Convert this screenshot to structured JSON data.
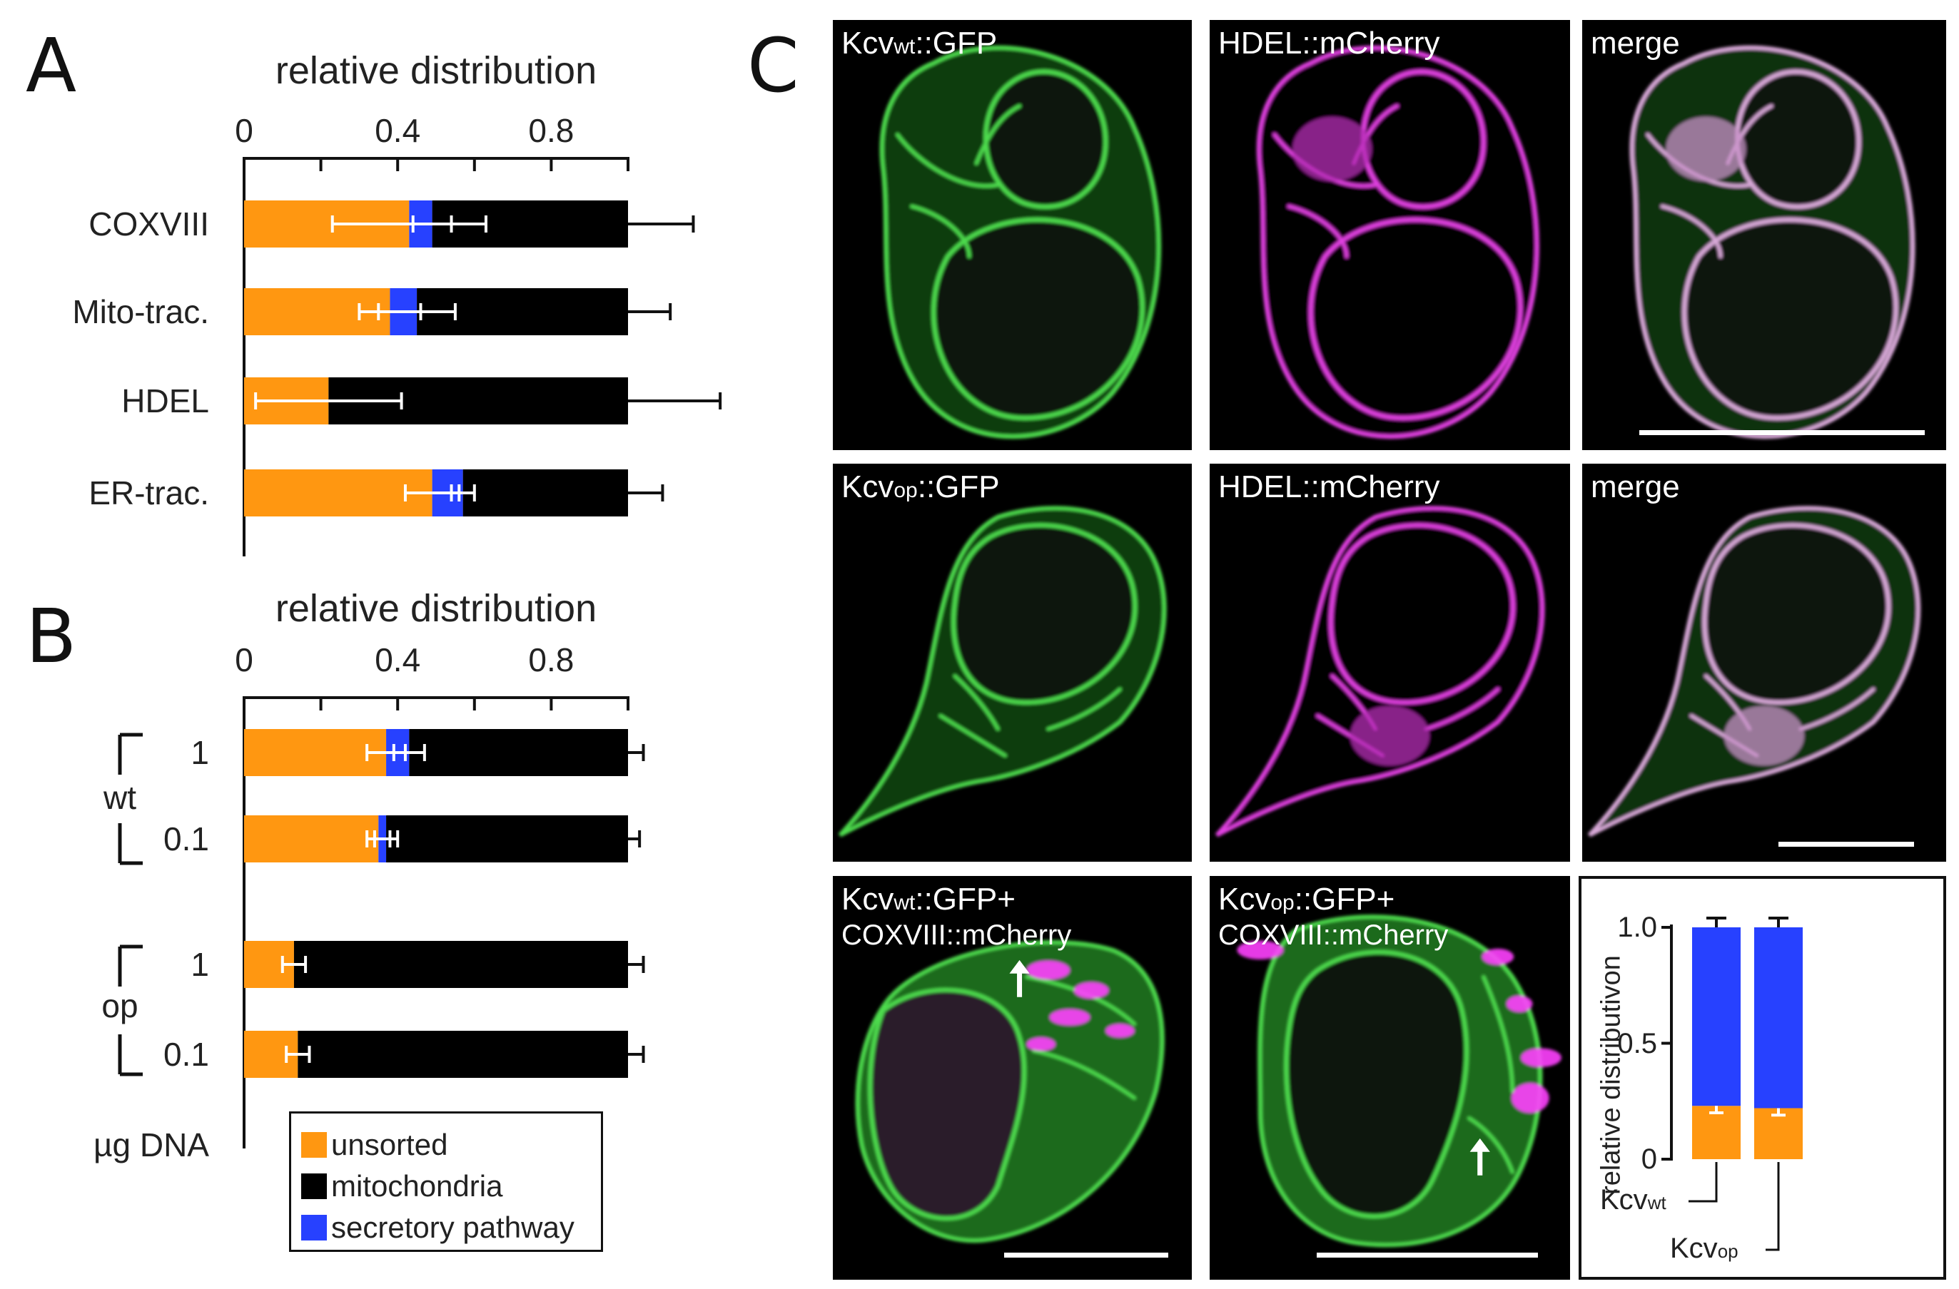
{
  "panel_letters": {
    "a": "A",
    "b": "B",
    "c": "C"
  },
  "legend": {
    "items": [
      {
        "label": "unsorted",
        "color": "#ff9711"
      },
      {
        "label": "mitochondria",
        "color": "#000000"
      },
      {
        "label": "secretory pathway",
        "color": "#2741ff"
      }
    ]
  },
  "chart_data": [
    {
      "id": "A",
      "type": "bar",
      "orientation": "horizontal",
      "stacked": true,
      "title": "relative distribution",
      "xlabel": "relative distribution",
      "ylabel": "",
      "xlim": [
        0,
        1.0
      ],
      "x_ticks": [
        "0",
        "0.4",
        "0.8"
      ],
      "categories": [
        "COXVIII",
        "Mito-trac.",
        "HDEL",
        "ER-trac."
      ],
      "series": [
        {
          "name": "unsorted",
          "color": "#ff9711",
          "values": [
            0.43,
            0.38,
            0.22,
            0.49
          ],
          "error": [
            0.2,
            0.08,
            0.19,
            0.07
          ]
        },
        {
          "name": "secretory pathway",
          "color": "#2741ff",
          "values": [
            0.06,
            0.07,
            0.0,
            0.08
          ],
          "error": [
            0.05,
            0.1,
            0.0,
            0.03
          ]
        },
        {
          "name": "mitochondria",
          "color": "#000000",
          "values": [
            0.51,
            0.55,
            0.78,
            0.43
          ],
          "error": [
            0.17,
            0.11,
            0.24,
            0.09
          ]
        }
      ],
      "grid": false
    },
    {
      "id": "B",
      "type": "bar",
      "orientation": "horizontal",
      "stacked": true,
      "title": "relative distribution",
      "xlabel": "relative distribution",
      "ylabel": "µg DNA",
      "xlim": [
        0,
        1.0
      ],
      "x_ticks": [
        "0",
        "0.4",
        "0.8"
      ],
      "groups": [
        "wt",
        "op"
      ],
      "categories": [
        "1",
        "0.1",
        "1",
        "0.1"
      ],
      "series": [
        {
          "name": "unsorted",
          "color": "#ff9711",
          "values": [
            0.37,
            0.35,
            0.13,
            0.14
          ],
          "error": [
            0.05,
            0.03,
            0.03,
            0.03
          ]
        },
        {
          "name": "secretory pathway",
          "color": "#2741ff",
          "values": [
            0.06,
            0.02,
            0.0,
            0.0
          ],
          "error": [
            0.04,
            0.03,
            0.0,
            0.0
          ]
        },
        {
          "name": "mitochondria",
          "color": "#000000",
          "values": [
            0.57,
            0.63,
            0.87,
            0.86
          ],
          "error": [
            0.04,
            0.03,
            0.04,
            0.04
          ]
        }
      ],
      "grid": false
    },
    {
      "id": "C-inset",
      "type": "bar",
      "stacked": true,
      "ylabel": "relative distributivon",
      "ylim": [
        0,
        1.0
      ],
      "y_ticks": [
        "0",
        "0.5",
        "1.0"
      ],
      "categories": [
        "Kcvwt",
        "Kcvop"
      ],
      "category_labels": [
        {
          "main": "Kcv",
          "sub": "wt"
        },
        {
          "main": "Kcv",
          "sub": "op"
        }
      ],
      "series": [
        {
          "name": "unsorted",
          "color": "#ff9711",
          "values": [
            0.23,
            0.22
          ],
          "error": [
            0.03,
            0.03
          ]
        },
        {
          "name": "secretory pathway",
          "color": "#2741ff",
          "values": [
            0.77,
            0.78
          ],
          "error": [
            0.04,
            0.04
          ]
        }
      ],
      "grid": false
    }
  ],
  "micrographs": [
    {
      "id": "wt-gfp",
      "label_main": "Kcv",
      "label_sub": "wt",
      "label_rest": "::GFP",
      "label_line2": "",
      "channel": "green",
      "shape": "double",
      "scale_bar": false
    },
    {
      "id": "wt-hdel",
      "label_main": "HDEL::mCherry",
      "label_sub": "",
      "label_rest": "",
      "label_line2": "",
      "channel": "magenta",
      "shape": "double",
      "scale_bar": false
    },
    {
      "id": "wt-merge",
      "label_main": "merge",
      "label_sub": "",
      "label_rest": "",
      "label_line2": "",
      "channel": "merge",
      "shape": "double",
      "scale_bar": true
    },
    {
      "id": "op-gfp",
      "label_main": "Kcv",
      "label_sub": "op",
      "label_rest": "::GFP",
      "label_line2": "",
      "channel": "green",
      "shape": "tail",
      "scale_bar": false
    },
    {
      "id": "op-hdel",
      "label_main": "HDEL::mCherry",
      "label_sub": "",
      "label_rest": "",
      "label_line2": "",
      "channel": "magenta",
      "shape": "tail",
      "scale_bar": false
    },
    {
      "id": "op-merge",
      "label_main": "merge",
      "label_sub": "",
      "label_rest": "",
      "label_line2": "",
      "channel": "merge",
      "shape": "tail",
      "scale_bar": true
    },
    {
      "id": "wt-cox",
      "label_main": "Kcv",
      "label_sub": "wt",
      "label_rest": "::GFP+",
      "label_line2": "COXVIII::mCherry",
      "channel": "cox",
      "shape": "coxA",
      "scale_bar": true
    },
    {
      "id": "op-cox",
      "label_main": "Kcv",
      "label_sub": "op",
      "label_rest": "::GFP+",
      "label_line2": "COXVIII::mCherry",
      "channel": "cox",
      "shape": "coxB",
      "scale_bar": true
    }
  ]
}
